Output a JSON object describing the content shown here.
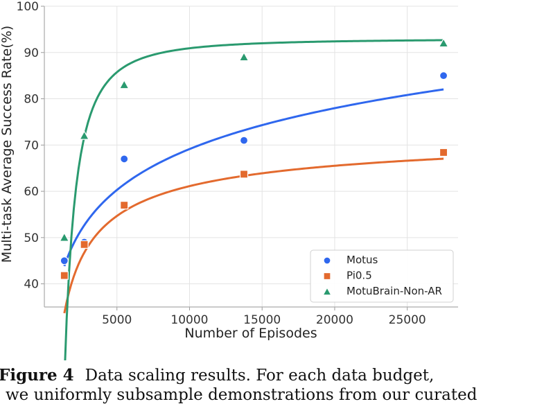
{
  "chart_data": {
    "type": "scatter",
    "xlabel": "Number of Episodes",
    "ylabel": "Multi-task Average Success Rate(%)",
    "xlim": [
      0,
      28500
    ],
    "ylim": [
      35,
      100
    ],
    "xticks": [
      5000,
      10000,
      15000,
      20000,
      25000
    ],
    "yticks": [
      40,
      50,
      60,
      70,
      80,
      90,
      100
    ],
    "grid": true,
    "legend_position": "bottom-right",
    "series": [
      {
        "name": "Motus",
        "marker": "circle",
        "color": "#2f67ee",
        "x": [
          1375,
          2750,
          5500,
          13750,
          27500
        ],
        "y": [
          45,
          49,
          67,
          71,
          85
        ],
        "fit": {
          "form": "a*ln(x)+b",
          "a": 12.75,
          "b": -48.3,
          "x_range": [
            1375,
            27500
          ]
        }
      },
      {
        "name": "Pi0.5",
        "marker": "square",
        "color": "#e36a2e",
        "x": [
          1375,
          2750,
          5500,
          13750,
          27500
        ],
        "y": [
          41.8,
          48.5,
          57,
          63.7,
          68.4
        ],
        "fit": {
          "form": "a - b*x^(-c)",
          "a": 75.0,
          "b": 2200,
          "c": 0.55,
          "x_range": [
            1375,
            27500
          ]
        }
      },
      {
        "name": "MotuBrain-Non-AR",
        "marker": "triangle",
        "color": "#2a9a6f",
        "x": [
          1375,
          2750,
          5500,
          13750,
          27500
        ],
        "y": [
          50,
          72,
          83,
          89,
          92
        ],
        "fit": {
          "form": "a - b*x^(-c)",
          "a": 93.0,
          "b": 33000000,
          "c": 1.8,
          "x_range": [
            1375,
            27500
          ]
        }
      }
    ]
  },
  "caption": {
    "label": "Figure 4",
    "text": "Data scaling results.  For each data budget,",
    "line2": "we uniformly subsample demonstrations from our curated"
  }
}
